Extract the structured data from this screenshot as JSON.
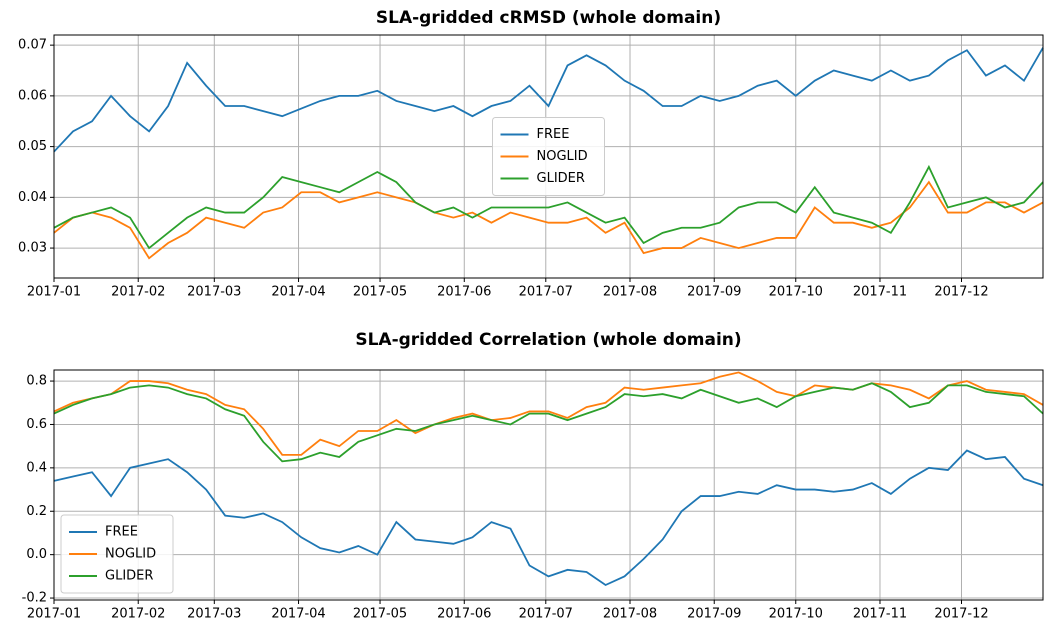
{
  "chart_data": [
    {
      "type": "line",
      "title": "SLA-gridded cRMSD (whole domain)",
      "x": [
        0,
        7,
        14,
        21,
        28,
        35,
        42,
        49,
        56,
        63,
        70,
        77,
        84,
        91,
        98,
        105,
        112,
        119,
        126,
        133,
        140,
        147,
        154,
        161,
        168,
        175,
        182,
        189,
        196,
        203,
        210,
        217,
        224,
        231,
        238,
        245,
        252,
        259,
        266,
        273,
        280,
        287,
        294,
        301,
        308,
        315,
        322,
        329,
        336,
        343,
        350,
        357,
        364
      ],
      "xlim": [
        0,
        364
      ],
      "xticks": [
        {
          "value": 0,
          "label": "2017-01"
        },
        {
          "value": 31,
          "label": "2017-02"
        },
        {
          "value": 59,
          "label": "2017-03"
        },
        {
          "value": 90,
          "label": "2017-04"
        },
        {
          "value": 120,
          "label": "2017-05"
        },
        {
          "value": 151,
          "label": "2017-06"
        },
        {
          "value": 181,
          "label": "2017-07"
        },
        {
          "value": 212,
          "label": "2017-08"
        },
        {
          "value": 243,
          "label": "2017-09"
        },
        {
          "value": 273,
          "label": "2017-10"
        },
        {
          "value": 304,
          "label": "2017-11"
        },
        {
          "value": 334,
          "label": "2017-12"
        }
      ],
      "ylim": [
        0.0241,
        0.072
      ],
      "yticks": [
        0.03,
        0.04,
        0.05,
        0.06,
        0.07
      ],
      "grid": true,
      "legend": "center",
      "series": [
        {
          "name": "FREE",
          "color": "#1f77b4",
          "values": [
            0.049,
            0.053,
            0.055,
            0.06,
            0.056,
            0.053,
            0.058,
            0.0665,
            0.062,
            0.058,
            0.058,
            0.057,
            0.056,
            0.0575,
            0.059,
            0.06,
            0.06,
            0.061,
            0.059,
            0.058,
            0.057,
            0.058,
            0.056,
            0.058,
            0.059,
            0.062,
            0.058,
            0.066,
            0.068,
            0.066,
            0.063,
            0.061,
            0.058,
            0.058,
            0.06,
            0.059,
            0.06,
            0.062,
            0.063,
            0.06,
            0.063,
            0.065,
            0.064,
            0.063,
            0.065,
            0.063,
            0.064,
            0.067,
            0.069,
            0.064,
            0.066,
            0.063,
            0.0695
          ]
        },
        {
          "name": "NOGLID",
          "color": "#ff7f0e",
          "values": [
            0.033,
            0.036,
            0.037,
            0.036,
            0.034,
            0.028,
            0.031,
            0.033,
            0.036,
            0.035,
            0.034,
            0.037,
            0.038,
            0.041,
            0.041,
            0.039,
            0.04,
            0.041,
            0.04,
            0.039,
            0.037,
            0.036,
            0.037,
            0.035,
            0.037,
            0.036,
            0.035,
            0.035,
            0.036,
            0.033,
            0.035,
            0.029,
            0.03,
            0.03,
            0.032,
            0.031,
            0.03,
            0.031,
            0.032,
            0.032,
            0.038,
            0.035,
            0.035,
            0.034,
            0.035,
            0.038,
            0.043,
            0.037,
            0.037,
            0.039,
            0.039,
            0.037,
            0.039
          ]
        },
        {
          "name": "GLIDER",
          "color": "#2ca02c",
          "values": [
            0.034,
            0.036,
            0.037,
            0.038,
            0.036,
            0.03,
            0.033,
            0.036,
            0.038,
            0.037,
            0.037,
            0.04,
            0.044,
            0.043,
            0.042,
            0.041,
            0.043,
            0.045,
            0.043,
            0.039,
            0.037,
            0.038,
            0.036,
            0.038,
            0.038,
            0.038,
            0.038,
            0.039,
            0.037,
            0.035,
            0.036,
            0.031,
            0.033,
            0.034,
            0.034,
            0.035,
            0.038,
            0.039,
            0.039,
            0.037,
            0.042,
            0.037,
            0.036,
            0.035,
            0.033,
            0.039,
            0.046,
            0.038,
            0.039,
            0.04,
            0.038,
            0.039,
            0.043
          ]
        }
      ]
    },
    {
      "type": "line",
      "title": "SLA-gridded Correlation (whole domain)",
      "x": [
        0,
        7,
        14,
        21,
        28,
        35,
        42,
        49,
        56,
        63,
        70,
        77,
        84,
        91,
        98,
        105,
        112,
        119,
        126,
        133,
        140,
        147,
        154,
        161,
        168,
        175,
        182,
        189,
        196,
        203,
        210,
        217,
        224,
        231,
        238,
        245,
        252,
        259,
        266,
        273,
        280,
        287,
        294,
        301,
        308,
        315,
        322,
        329,
        336,
        343,
        350,
        357,
        364
      ],
      "xlim": [
        0,
        364
      ],
      "xticks": [
        {
          "value": 0,
          "label": "2017-01"
        },
        {
          "value": 31,
          "label": "2017-02"
        },
        {
          "value": 59,
          "label": "2017-03"
        },
        {
          "value": 90,
          "label": "2017-04"
        },
        {
          "value": 120,
          "label": "2017-05"
        },
        {
          "value": 151,
          "label": "2017-06"
        },
        {
          "value": 181,
          "label": "2017-07"
        },
        {
          "value": 212,
          "label": "2017-08"
        },
        {
          "value": 243,
          "label": "2017-09"
        },
        {
          "value": 273,
          "label": "2017-10"
        },
        {
          "value": 304,
          "label": "2017-11"
        },
        {
          "value": 334,
          "label": "2017-12"
        }
      ],
      "ylim": [
        -0.209,
        0.851
      ],
      "yticks": [
        -0.2,
        {
          "value": 0,
          "label": "0.0"
        },
        0.2,
        0.4,
        0.6,
        0.8
      ],
      "grid": true,
      "legend": "lower left",
      "series": [
        {
          "name": "FREE",
          "color": "#1f77b4",
          "values": [
            0.34,
            0.36,
            0.38,
            0.27,
            0.4,
            0.42,
            0.44,
            0.38,
            0.3,
            0.18,
            0.17,
            0.19,
            0.15,
            0.08,
            0.03,
            0.01,
            0.04,
            0.0,
            0.15,
            0.07,
            0.06,
            0.05,
            0.08,
            0.15,
            0.12,
            -0.05,
            -0.1,
            -0.07,
            -0.08,
            -0.14,
            -0.1,
            -0.02,
            0.07,
            0.2,
            0.27,
            0.27,
            0.29,
            0.28,
            0.32,
            0.3,
            0.3,
            0.29,
            0.3,
            0.33,
            0.28,
            0.35,
            0.4,
            0.39,
            0.48,
            0.44,
            0.45,
            0.35,
            0.32
          ]
        },
        {
          "name": "NOGLID",
          "color": "#ff7f0e",
          "values": [
            0.66,
            0.7,
            0.72,
            0.74,
            0.8,
            0.8,
            0.79,
            0.76,
            0.74,
            0.69,
            0.67,
            0.58,
            0.46,
            0.46,
            0.53,
            0.5,
            0.57,
            0.57,
            0.62,
            0.56,
            0.6,
            0.63,
            0.65,
            0.62,
            0.63,
            0.66,
            0.66,
            0.63,
            0.68,
            0.7,
            0.77,
            0.76,
            0.77,
            0.78,
            0.79,
            0.82,
            0.84,
            0.8,
            0.75,
            0.73,
            0.78,
            0.77,
            0.76,
            0.79,
            0.78,
            0.76,
            0.72,
            0.78,
            0.8,
            0.76,
            0.75,
            0.74,
            0.69
          ]
        },
        {
          "name": "GLIDER",
          "color": "#2ca02c",
          "values": [
            0.65,
            0.69,
            0.72,
            0.74,
            0.77,
            0.78,
            0.77,
            0.74,
            0.72,
            0.67,
            0.64,
            0.52,
            0.43,
            0.44,
            0.47,
            0.45,
            0.52,
            0.55,
            0.58,
            0.57,
            0.6,
            0.62,
            0.64,
            0.62,
            0.6,
            0.65,
            0.65,
            0.62,
            0.65,
            0.68,
            0.74,
            0.73,
            0.74,
            0.72,
            0.76,
            0.73,
            0.7,
            0.72,
            0.68,
            0.73,
            0.75,
            0.77,
            0.76,
            0.79,
            0.75,
            0.68,
            0.7,
            0.78,
            0.78,
            0.75,
            0.74,
            0.73,
            0.65
          ]
        }
      ]
    }
  ]
}
